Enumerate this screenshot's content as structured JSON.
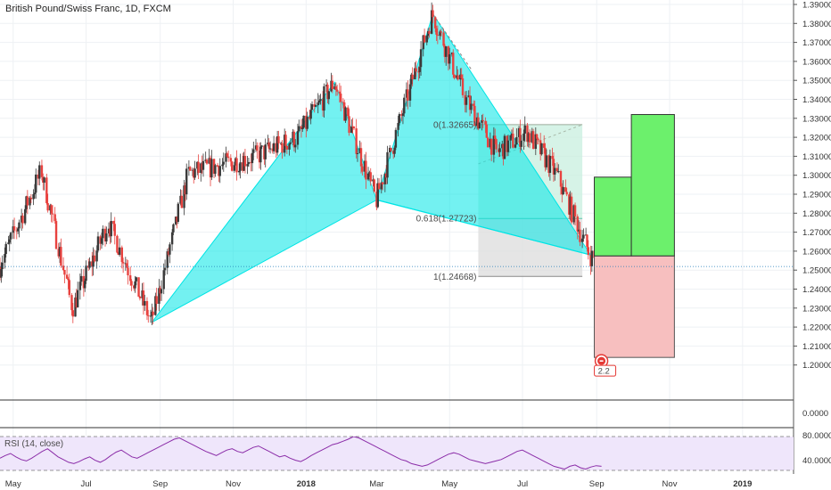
{
  "chart_data": {
    "type": "candlestick",
    "title": "British Pound/Swiss Franc, 1D, FXCM",
    "last_price": 1.2519,
    "price_axis": {
      "ylim": [
        1.19,
        1.39
      ],
      "ticks": [
        "1.39000",
        "1.38000",
        "1.37000",
        "1.36000",
        "1.35000",
        "1.34000",
        "1.33000",
        "1.32000",
        "1.31000",
        "1.30000",
        "1.29000",
        "1.28000",
        "1.27000",
        "1.26000",
        "1.25000",
        "1.24000",
        "1.23000",
        "1.22000",
        "1.21000",
        "1.20000"
      ],
      "zero_label": "0.0000"
    },
    "time_axis": {
      "labels": [
        "May",
        "Jul",
        "Sep",
        "Nov",
        "2018",
        "Mar",
        "May",
        "Jul",
        "Sep",
        "Nov",
        "2019"
      ],
      "range": [
        "2017-04-20",
        "2019-01-25"
      ]
    },
    "xabcd_pattern": {
      "color": "#00e5e5",
      "points": [
        {
          "date": "2017-08-25",
          "price": 1.2225
        },
        {
          "date": "2018-01-25",
          "price": 1.349
        },
        {
          "date": "2018-03-01",
          "price": 1.287
        },
        {
          "date": "2018-04-17",
          "price": 1.385
        },
        {
          "date": "2018-08-27",
          "price": 1.258
        }
      ]
    },
    "fib_retracement": {
      "levels": [
        {
          "ratio": "0",
          "price": "1.32665"
        },
        {
          "ratio": "0.618",
          "price": "1.27723"
        },
        {
          "ratio": "1",
          "price": "1.24668"
        }
      ]
    },
    "projections": [
      {
        "from": "2018-08-30",
        "to": "2018-09-30",
        "top": 1.299,
        "bottom": 1.2575
      },
      {
        "from": "2018-09-30",
        "to": "2018-11-05",
        "top": 1.332,
        "bottom": 1.2575
      }
    ],
    "stop_zone": {
      "from": "2018-08-30",
      "to": "2018-11-05",
      "top": 1.2575,
      "bottom": 1.204
    },
    "risk_reward_label": "2.2",
    "rsi": {
      "label": "RSI (14, close)",
      "ticks": [
        "80.0000",
        "40.0000"
      ],
      "bands": [
        70,
        30
      ],
      "ylim": [
        20,
        90
      ],
      "values": [
        48,
        52,
        55,
        50,
        46,
        44,
        48,
        53,
        58,
        62,
        56,
        50,
        46,
        42,
        40,
        43,
        47,
        50,
        45,
        42,
        46,
        52,
        57,
        60,
        55,
        50,
        48,
        52,
        56,
        60,
        64,
        68,
        72,
        76,
        78,
        74,
        70,
        66,
        62,
        58,
        55,
        52,
        56,
        60,
        62,
        58,
        56,
        60,
        64,
        66,
        62,
        58,
        54,
        50,
        52,
        48,
        45,
        43,
        47,
        52,
        56,
        60,
        64,
        68,
        70,
        73,
        76,
        80,
        78,
        74,
        70,
        66,
        62,
        58,
        54,
        50,
        46,
        44,
        40,
        38,
        36,
        38,
        42,
        46,
        50,
        54,
        56,
        54,
        50,
        46,
        44,
        42,
        40,
        42,
        44,
        46,
        50,
        54,
        58,
        60,
        56,
        52,
        48,
        44,
        40,
        36,
        34,
        32,
        36,
        38,
        34,
        32,
        35,
        37,
        36
      ]
    }
  },
  "icons": {
    "alert_icon": "circle-alert-icon"
  }
}
